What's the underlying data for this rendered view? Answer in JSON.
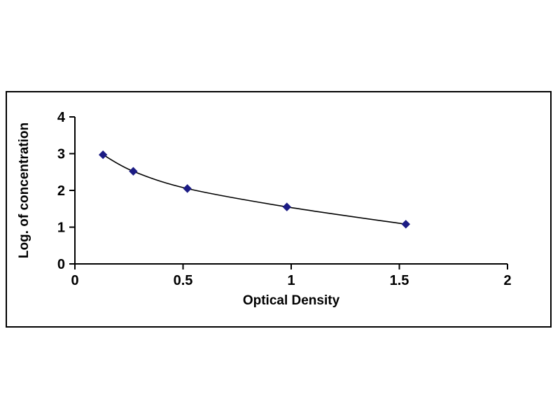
{
  "chart_data": {
    "type": "line",
    "title": "",
    "xlabel": "Optical Density",
    "ylabel": "Log. of concentration",
    "x": [
      0.13,
      0.27,
      0.52,
      0.98,
      1.53
    ],
    "y": [
      2.97,
      2.52,
      2.05,
      1.55,
      1.08
    ],
    "xlim": [
      0,
      2
    ],
    "ylim": [
      0,
      4
    ],
    "xticks": [
      0,
      0.5,
      1,
      1.5,
      2
    ],
    "yticks": [
      0,
      1,
      2,
      3,
      4
    ],
    "grid": false,
    "legend": "none",
    "marker": "diamond",
    "marker_color": "#1c1c84",
    "line_color": "#000000",
    "axis_color": "#000000",
    "tick_label_color": "#000000"
  }
}
